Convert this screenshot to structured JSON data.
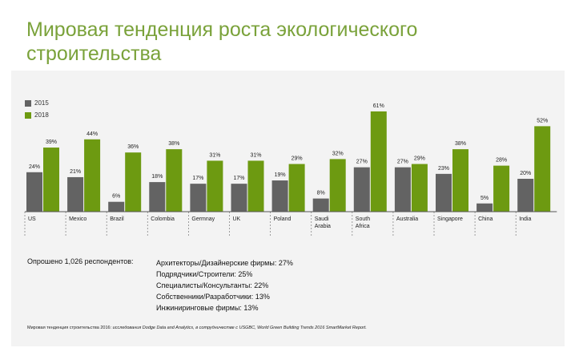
{
  "title": "Мировая тенденция роста экологического строительства",
  "legend": [
    {
      "label": "2015",
      "color": "#636363"
    },
    {
      "label": "2018",
      "color": "#6d9a11"
    }
  ],
  "chart_data": {
    "type": "bar",
    "categories": [
      "US",
      "Mexico",
      "Brazil",
      "Colombia",
      "Germnay",
      "UK",
      "Poland",
      "Saudi Arabia",
      "South Africa",
      "Australia",
      "Singapore",
      "China",
      "India"
    ],
    "category_lines": [
      [
        "US"
      ],
      [
        "Mexico"
      ],
      [
        "Brazil"
      ],
      [
        "Colombia"
      ],
      [
        "Germnay"
      ],
      [
        "UK"
      ],
      [
        "Poland"
      ],
      [
        "Saudi",
        "Arabia"
      ],
      [
        "South",
        "Africa"
      ],
      [
        "Australia"
      ],
      [
        "Singapore"
      ],
      [
        "China"
      ],
      [
        "India"
      ]
    ],
    "series": [
      {
        "name": "2015",
        "color": "#636363",
        "values": [
          24,
          21,
          6,
          18,
          17,
          17,
          19,
          8,
          27,
          27,
          23,
          5,
          20
        ]
      },
      {
        "name": "2018",
        "color": "#6d9a11",
        "values": [
          39,
          44,
          36,
          38,
          31,
          31,
          29,
          32,
          61,
          29,
          38,
          28,
          52
        ]
      }
    ],
    "value_suffix": "%",
    "ylim": [
      0,
      61
    ],
    "grid": false,
    "legend_position": "top-left"
  },
  "respondents": {
    "label": "Опрошено 1,026 респондентов:",
    "items": [
      "Архитекторы/Дизайнерские фирмы: 27%",
      "Подрядчики/Строители: 25%",
      "Специалисты/Консультанты: 22%",
      "Собственники/Разработчики: 13%",
      "Инжиниринговые фирмы: 13%"
    ]
  },
  "source": {
    "prefix": "Мировая тенденция строительства 2016: ",
    "text": "исследования Dodge Data and Analytics, в сотрудничестве с USGBC, World Green Building Trends 2016 SmartMarket Report."
  }
}
